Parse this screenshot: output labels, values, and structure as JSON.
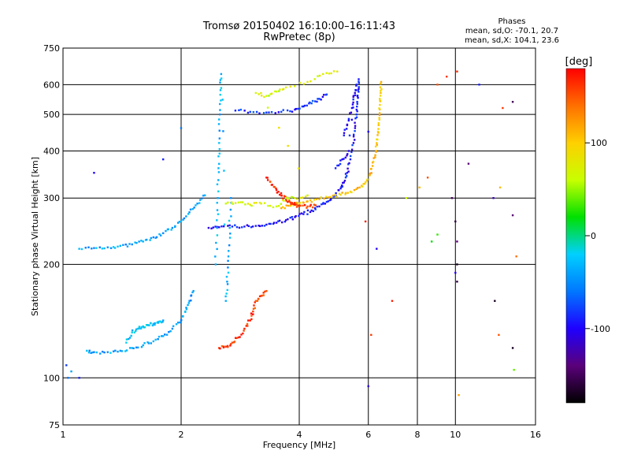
{
  "header": {
    "title_line1": "Tromsø 20150402 16:10:00–16:11:43",
    "title_line2": "RwPretec (8p)",
    "stats_title": "Phases",
    "stats_line1": "mean, sd,O: -70.1, 20.7",
    "stats_line2": "mean, sd,X: 104.1, 23.6"
  },
  "chart_data": {
    "type": "scatter",
    "xlabel": "Frequency [MHz]",
    "ylabel": "Stationary phase Virtual Height [km]",
    "x_scale": "log",
    "y_scale": "log",
    "xlim": [
      1,
      16
    ],
    "ylim": [
      75,
      750
    ],
    "x_ticks": [
      1,
      2,
      4,
      6,
      8,
      10,
      16
    ],
    "y_ticks": [
      75,
      100,
      200,
      300,
      400,
      500,
      600,
      750
    ],
    "grid": true,
    "colorbar": {
      "label": "[deg]",
      "range": [
        -180,
        180
      ],
      "ticks": [
        100,
        0,
        -100
      ],
      "colormap": [
        "#000000",
        "#5a007a",
        "#1f00ff",
        "#0077ff",
        "#00d0ff",
        "#00e000",
        "#c8ff00",
        "#ffd000",
        "#ff7000",
        "#ff0000"
      ]
    },
    "series": [
      {
        "phase": -95,
        "points": [
          [
            2.35,
            250
          ],
          [
            2.5,
            251
          ],
          [
            2.7,
            252
          ],
          [
            2.9,
            252
          ],
          [
            3.1,
            253
          ],
          [
            3.3,
            255
          ],
          [
            3.5,
            258
          ],
          [
            3.7,
            262
          ],
          [
            3.9,
            267
          ],
          [
            4.1,
            272
          ],
          [
            4.3,
            278
          ],
          [
            4.5,
            285
          ],
          [
            4.7,
            293
          ],
          [
            4.9,
            303
          ],
          [
            5.1,
            318
          ],
          [
            5.2,
            330
          ],
          [
            5.3,
            350
          ],
          [
            5.4,
            380
          ],
          [
            5.5,
            420
          ],
          [
            5.55,
            460
          ],
          [
            5.6,
            500
          ],
          [
            5.62,
            540
          ],
          [
            5.65,
            580
          ],
          [
            5.67,
            620
          ]
        ]
      },
      {
        "phase": 105,
        "points": [
          [
            3.6,
            282
          ],
          [
            3.8,
            286
          ],
          [
            4.0,
            290
          ],
          [
            4.2,
            294
          ],
          [
            4.5,
            298
          ],
          [
            4.8,
            302
          ],
          [
            5.1,
            306
          ],
          [
            5.4,
            312
          ],
          [
            5.7,
            320
          ],
          [
            5.9,
            330
          ],
          [
            6.05,
            345
          ],
          [
            6.15,
            365
          ],
          [
            6.25,
            390
          ],
          [
            6.3,
            420
          ],
          [
            6.35,
            450
          ],
          [
            6.4,
            490
          ],
          [
            6.42,
            530
          ],
          [
            6.45,
            570
          ],
          [
            6.47,
            610
          ]
        ]
      },
      {
        "phase": 165,
        "points": [
          [
            3.3,
            340
          ],
          [
            3.4,
            325
          ],
          [
            3.5,
            315
          ],
          [
            3.6,
            305
          ],
          [
            3.7,
            298
          ],
          [
            3.8,
            292
          ],
          [
            3.9,
            288
          ],
          [
            4.0,
            285
          ],
          [
            4.2,
            285
          ],
          [
            4.4,
            287
          ]
        ]
      },
      {
        "phase": -85,
        "points": [
          [
            2.75,
            512
          ],
          [
            3.0,
            508
          ],
          [
            3.3,
            506
          ],
          [
            3.6,
            508
          ],
          [
            3.9,
            515
          ],
          [
            4.1,
            525
          ],
          [
            4.3,
            535
          ],
          [
            4.5,
            550
          ],
          [
            4.7,
            565
          ]
        ]
      },
      {
        "phase": -40,
        "points": [
          [
            1.15,
            118
          ],
          [
            1.2,
            117
          ],
          [
            1.3,
            117
          ],
          [
            1.4,
            118
          ],
          [
            1.5,
            120
          ],
          [
            1.6,
            122
          ],
          [
            1.7,
            125
          ],
          [
            1.8,
            129
          ],
          [
            1.9,
            135
          ],
          [
            2.0,
            142
          ],
          [
            2.05,
            150
          ],
          [
            2.1,
            160
          ],
          [
            2.15,
            170
          ]
        ]
      },
      {
        "phase": -30,
        "points": [
          [
            1.45,
            124
          ],
          [
            1.5,
            132
          ],
          [
            1.55,
            135
          ],
          [
            1.6,
            137
          ],
          [
            1.65,
            138
          ],
          [
            1.7,
            139
          ],
          [
            1.75,
            140
          ],
          [
            1.8,
            142
          ]
        ]
      },
      {
        "phase": -40,
        "points": [
          [
            1.1,
            220
          ],
          [
            1.2,
            221
          ],
          [
            1.3,
            222
          ],
          [
            1.4,
            224
          ],
          [
            1.5,
            226
          ],
          [
            1.6,
            230
          ],
          [
            1.7,
            236
          ],
          [
            1.8,
            242
          ],
          [
            1.9,
            250
          ],
          [
            2.0,
            260
          ],
          [
            2.1,
            275
          ],
          [
            2.2,
            290
          ],
          [
            2.3,
            305
          ]
        ]
      },
      {
        "phase": -35,
        "points": [
          [
            2.45,
            200
          ],
          [
            2.47,
            250
          ],
          [
            2.48,
            300
          ],
          [
            2.49,
            360
          ],
          [
            2.5,
            420
          ],
          [
            2.51,
            500
          ],
          [
            2.52,
            580
          ],
          [
            2.53,
            640
          ],
          [
            2.6,
            160
          ],
          [
            2.62,
            180
          ],
          [
            2.64,
            210
          ],
          [
            2.66,
            250
          ],
          [
            2.68,
            300
          ]
        ]
      },
      {
        "phase": 160,
        "points": [
          [
            2.5,
            120
          ],
          [
            2.6,
            121
          ],
          [
            2.7,
            124
          ],
          [
            2.8,
            128
          ],
          [
            2.9,
            135
          ],
          [
            3.0,
            142
          ],
          [
            3.05,
            150
          ],
          [
            3.1,
            160
          ],
          [
            3.2,
            165
          ],
          [
            3.3,
            170
          ]
        ]
      },
      {
        "phase": 70,
        "points": [
          [
            2.6,
            290
          ],
          [
            2.8,
            292
          ],
          [
            3.0,
            288
          ],
          [
            3.2,
            290
          ],
          [
            3.5,
            285
          ],
          [
            3.7,
            300
          ],
          [
            3.9,
            300
          ],
          [
            4.2,
            305
          ],
          [
            3.1,
            570
          ],
          [
            3.3,
            560
          ],
          [
            3.5,
            575
          ],
          [
            3.7,
            590
          ],
          [
            4.2,
            610
          ],
          [
            4.6,
            640
          ],
          [
            5.0,
            650
          ]
        ]
      },
      {
        "phase": -100,
        "points": [
          [
            5.2,
            440
          ],
          [
            5.3,
            470
          ],
          [
            5.45,
            520
          ],
          [
            5.5,
            560
          ],
          [
            5.6,
            600
          ],
          [
            5.35,
            400
          ],
          [
            5.15,
            380
          ],
          [
            4.95,
            360
          ]
        ]
      }
    ],
    "scattered_points": [
      [
        9.0,
        600,
        150
      ],
      [
        9.5,
        630,
        160
      ],
      [
        10.1,
        650,
        165
      ],
      [
        11.5,
        600,
        -90
      ],
      [
        13.2,
        520,
        160
      ],
      [
        14.0,
        540,
        -150
      ],
      [
        12.5,
        300,
        -120
      ],
      [
        14.0,
        270,
        -140
      ],
      [
        13.0,
        320,
        110
      ],
      [
        14.3,
        210,
        140
      ],
      [
        8.1,
        320,
        110
      ],
      [
        8.5,
        340,
        150
      ],
      [
        9.8,
        300,
        -150
      ],
      [
        10.0,
        260,
        -160
      ],
      [
        10.1,
        230,
        -140
      ],
      [
        10.1,
        200,
        -170
      ],
      [
        10.1,
        180,
        -160
      ],
      [
        12.6,
        160,
        -170
      ],
      [
        12.9,
        130,
        150
      ],
      [
        14.0,
        120,
        -170
      ],
      [
        14.1,
        105,
        40
      ],
      [
        6.0,
        95,
        -110
      ],
      [
        6.1,
        130,
        160
      ],
      [
        6.3,
        220,
        -100
      ],
      [
        6.9,
        160,
        170
      ],
      [
        10.2,
        90,
        120
      ],
      [
        10.8,
        370,
        -140
      ],
      [
        8.7,
        230,
        20
      ],
      [
        9.0,
        240,
        30
      ],
      [
        10.0,
        190,
        -100
      ],
      [
        1.02,
        108,
        -80
      ],
      [
        1.03,
        100,
        -60
      ],
      [
        1.05,
        104,
        -40
      ],
      [
        1.1,
        100,
        -90
      ],
      [
        2.0,
        460,
        -60
      ],
      [
        1.8,
        380,
        -90
      ],
      [
        1.2,
        350,
        -100
      ],
      [
        6.0,
        450,
        -100
      ],
      [
        7.5,
        300,
        60
      ],
      [
        5.9,
        260,
        170
      ]
    ]
  }
}
